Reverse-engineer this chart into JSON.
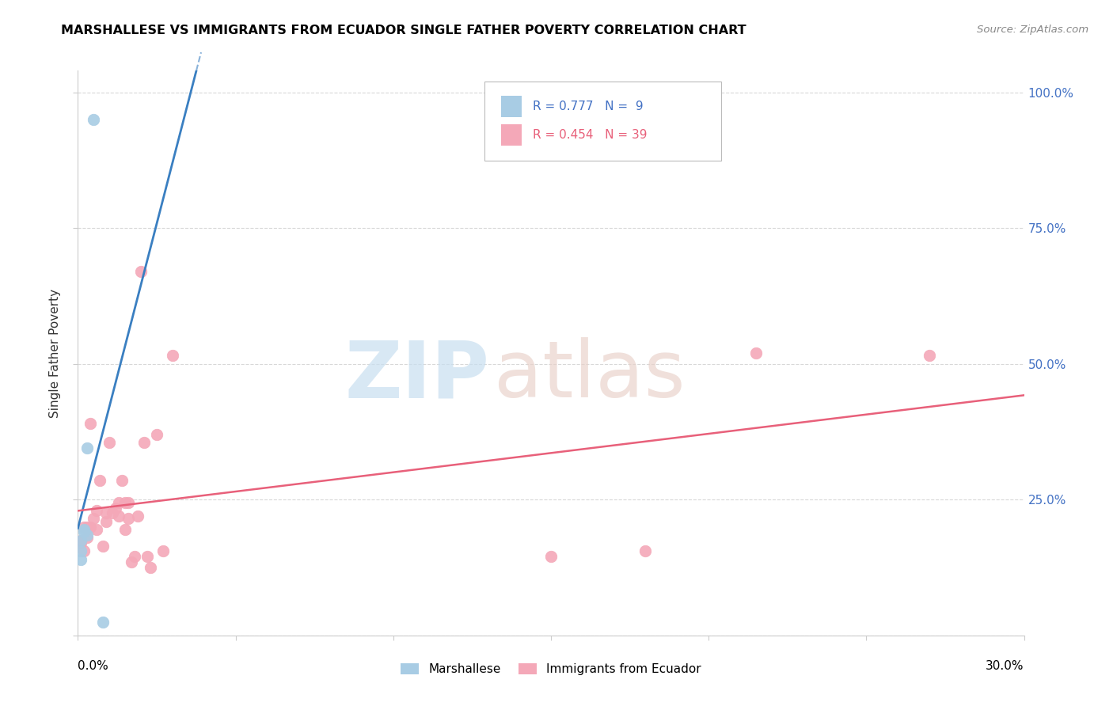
{
  "title": "MARSHALLESE VS IMMIGRANTS FROM ECUADOR SINGLE FATHER POVERTY CORRELATION CHART",
  "source": "Source: ZipAtlas.com",
  "ylabel": "Single Father Poverty",
  "right_yticks": [
    "100.0%",
    "75.0%",
    "50.0%",
    "25.0%"
  ],
  "right_ytick_vals": [
    1.0,
    0.75,
    0.5,
    0.25
  ],
  "legend_blue_r": "0.777",
  "legend_blue_n": " 9",
  "legend_pink_r": "0.454",
  "legend_pink_n": "39",
  "blue_color": "#a8cce4",
  "pink_color": "#f4a8b8",
  "blue_line_color": "#3a7fc1",
  "pink_line_color": "#e8607a",
  "blue_points_x": [
    0.001,
    0.001,
    0.001,
    0.002,
    0.002,
    0.003,
    0.003,
    0.005,
    0.008
  ],
  "blue_points_y": [
    0.175,
    0.14,
    0.155,
    0.19,
    0.195,
    0.345,
    0.185,
    0.95,
    0.025
  ],
  "pink_points_x": [
    0.001,
    0.001,
    0.002,
    0.002,
    0.003,
    0.003,
    0.004,
    0.004,
    0.005,
    0.006,
    0.006,
    0.007,
    0.008,
    0.009,
    0.009,
    0.01,
    0.011,
    0.012,
    0.013,
    0.013,
    0.014,
    0.015,
    0.015,
    0.016,
    0.016,
    0.017,
    0.018,
    0.019,
    0.02,
    0.021,
    0.022,
    0.023,
    0.025,
    0.027,
    0.03,
    0.15,
    0.18,
    0.215,
    0.27
  ],
  "pink_points_y": [
    0.17,
    0.175,
    0.155,
    0.2,
    0.18,
    0.2,
    0.39,
    0.2,
    0.215,
    0.195,
    0.23,
    0.285,
    0.165,
    0.21,
    0.225,
    0.355,
    0.225,
    0.235,
    0.245,
    0.22,
    0.285,
    0.245,
    0.195,
    0.245,
    0.215,
    0.135,
    0.145,
    0.22,
    0.67,
    0.355,
    0.145,
    0.125,
    0.37,
    0.155,
    0.515,
    0.145,
    0.155,
    0.52,
    0.515
  ],
  "xlim": [
    0.0,
    0.3
  ],
  "ylim": [
    0.0,
    1.04
  ],
  "background_color": "#ffffff",
  "grid_color": "#d8d8d8",
  "xtick_positions": [
    0.0,
    0.05,
    0.1,
    0.15,
    0.2,
    0.25,
    0.3
  ],
  "ytick_positions": [
    0.0,
    0.25,
    0.5,
    0.75,
    1.0
  ]
}
